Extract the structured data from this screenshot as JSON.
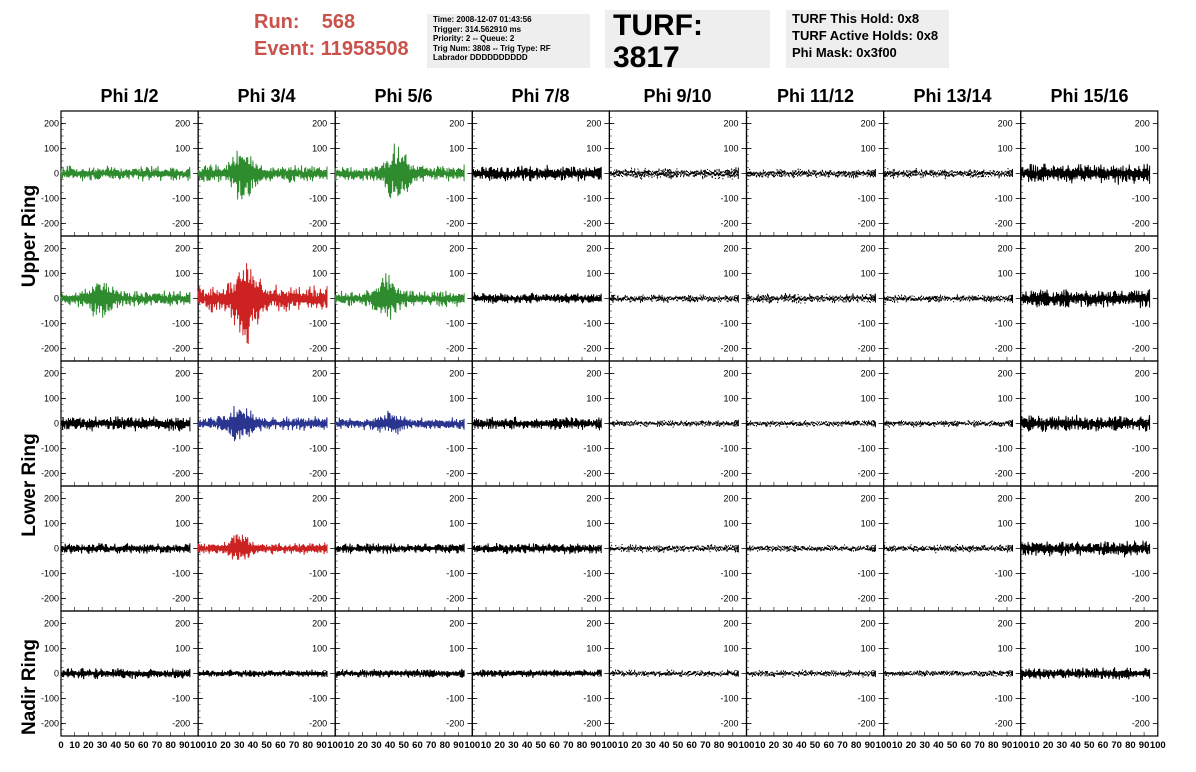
{
  "header": {
    "run_label": "Run:",
    "run_value": "568",
    "event_label": "Event:",
    "event_value": "11958508",
    "info_lines": [
      "Time: 2008-12-07 01:43:56",
      "Trigger: 314.562910 ms",
      "Priority: 2 -- Queue: 2",
      "Trig Num: 3808 -- Trig Type: RF",
      "Labrador DDDDDDDDDD"
    ],
    "turf": "TURF: 3817",
    "turf_lines": [
      "TURF This Hold: 0x8",
      "TURF Active Holds: 0x8",
      "Phi Mask: 0x3f00"
    ]
  },
  "chart_data": {
    "type": "line",
    "columns": [
      "Phi 1/2",
      "Phi 3/4",
      "Phi 5/6",
      "Phi 7/8",
      "Phi 9/10",
      "Phi 11/12",
      "Phi 13/14",
      "Phi 15/16"
    ],
    "ring_labels": [
      "Upper Ring",
      "Lower Ring",
      "Nadir Ring"
    ],
    "ylim": [
      -250,
      250
    ],
    "y_ticks": [
      -200,
      -100,
      0,
      100,
      200
    ],
    "xlim": [
      0,
      100
    ],
    "x_ticks": [
      0,
      10,
      20,
      30,
      40,
      50,
      60,
      70,
      80,
      90,
      100
    ],
    "x_tick_labels": [
      "0",
      "10",
      "20",
      "30",
      "40",
      "50",
      "60",
      "70",
      "80",
      "90",
      "100"
    ],
    "colors": {
      "green": "#2e8b2e",
      "red": "#cc2222",
      "blue": "#2a3590",
      "black": "#000000"
    },
    "rows": [
      {
        "ring": "Upper Ring",
        "panels": [
          {
            "color": "green",
            "amp": 28,
            "burst": 0,
            "style": "solid"
          },
          {
            "color": "green",
            "amp": 32,
            "burst": 110,
            "burst_center": 33,
            "style": "solid"
          },
          {
            "color": "green",
            "amp": 30,
            "burst": 120,
            "burst_center": 45,
            "style": "solid"
          },
          {
            "color": "black",
            "amp": 30,
            "burst": 0,
            "style": "solid"
          },
          {
            "color": "black",
            "amp": 22,
            "burst": 0,
            "style": "dashed"
          },
          {
            "color": "black",
            "amp": 18,
            "burst": 0,
            "style": "dashed"
          },
          {
            "color": "black",
            "amp": 20,
            "burst": 0,
            "style": "dashed"
          },
          {
            "color": "black",
            "amp": 38,
            "burst": 0,
            "style": "solid"
          }
        ]
      },
      {
        "ring": "Upper Ring",
        "panels": [
          {
            "color": "green",
            "amp": 30,
            "burst": 70,
            "burst_center": 30,
            "style": "solid"
          },
          {
            "color": "red",
            "amp": 50,
            "burst": 190,
            "burst_center": 35,
            "style": "solid"
          },
          {
            "color": "green",
            "amp": 30,
            "burst": 80,
            "burst_center": 38,
            "style": "solid"
          },
          {
            "color": "black",
            "amp": 20,
            "burst": 0,
            "style": "solid"
          },
          {
            "color": "black",
            "amp": 16,
            "burst": 0,
            "style": "dashed"
          },
          {
            "color": "black",
            "amp": 20,
            "burst": 0,
            "style": "dashed"
          },
          {
            "color": "black",
            "amp": 16,
            "burst": 0,
            "style": "dashed"
          },
          {
            "color": "black",
            "amp": 34,
            "burst": 0,
            "style": "solid"
          }
        ]
      },
      {
        "ring": "Lower Ring",
        "panels": [
          {
            "color": "black",
            "amp": 28,
            "burst": 0,
            "style": "solid"
          },
          {
            "color": "blue",
            "amp": 26,
            "burst": 75,
            "burst_center": 30,
            "style": "solid"
          },
          {
            "color": "blue",
            "amp": 22,
            "burst": 40,
            "burst_center": 40,
            "style": "solid"
          },
          {
            "color": "black",
            "amp": 24,
            "burst": 0,
            "style": "solid"
          },
          {
            "color": "black",
            "amp": 14,
            "burst": 0,
            "style": "dashed"
          },
          {
            "color": "black",
            "amp": 14,
            "burst": 0,
            "style": "dashed"
          },
          {
            "color": "black",
            "amp": 14,
            "burst": 0,
            "style": "dashed"
          },
          {
            "color": "black",
            "amp": 30,
            "burst": 0,
            "style": "solid"
          }
        ]
      },
      {
        "ring": "Lower Ring",
        "panels": [
          {
            "color": "black",
            "amp": 20,
            "burst": 0,
            "style": "solid"
          },
          {
            "color": "red",
            "amp": 22,
            "burst": 55,
            "burst_center": 30,
            "style": "solid"
          },
          {
            "color": "black",
            "amp": 20,
            "burst": 0,
            "style": "solid"
          },
          {
            "color": "black",
            "amp": 20,
            "burst": 0,
            "style": "solid"
          },
          {
            "color": "black",
            "amp": 16,
            "burst": 0,
            "style": "dashed"
          },
          {
            "color": "black",
            "amp": 14,
            "burst": 0,
            "style": "dashed"
          },
          {
            "color": "black",
            "amp": 16,
            "burst": 0,
            "style": "dashed"
          },
          {
            "color": "black",
            "amp": 30,
            "burst": 0,
            "style": "solid"
          }
        ]
      },
      {
        "ring": "Nadir Ring",
        "panels": [
          {
            "color": "black",
            "amp": 20,
            "burst": 0,
            "style": "solid"
          },
          {
            "color": "black",
            "amp": 14,
            "burst": 0,
            "style": "solid"
          },
          {
            "color": "black",
            "amp": 16,
            "burst": 0,
            "style": "solid"
          },
          {
            "color": "black",
            "amp": 16,
            "burst": 0,
            "style": "solid"
          },
          {
            "color": "black",
            "amp": 14,
            "burst": 0,
            "style": "dashed"
          },
          {
            "color": "black",
            "amp": 14,
            "burst": 0,
            "style": "dashed"
          },
          {
            "color": "black",
            "amp": 14,
            "burst": 0,
            "style": "dashed"
          },
          {
            "color": "black",
            "amp": 22,
            "burst": 0,
            "style": "solid"
          }
        ]
      }
    ]
  }
}
